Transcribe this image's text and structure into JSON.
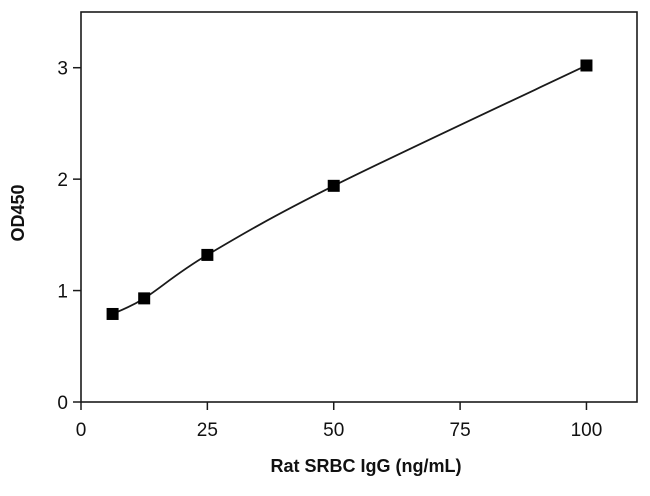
{
  "chart_data": {
    "type": "scatter",
    "title": "",
    "xlabel": "Rat SRBC IgG (ng/mL)",
    "ylabel": "OD450",
    "xlim": [
      0,
      110
    ],
    "ylim": [
      0,
      3.5
    ],
    "x_ticks": [
      0,
      25,
      50,
      75,
      100
    ],
    "y_ticks": [
      0,
      1,
      2,
      3
    ],
    "grid": false,
    "legend": "none",
    "fit_line": true,
    "series": [
      {
        "x": [
          6.25,
          12.5,
          25,
          50,
          100
        ],
        "y": [
          0.79,
          0.93,
          1.32,
          1.94,
          3.02
        ]
      }
    ],
    "colors": {
      "marker": "#000000",
      "line": "#1a1a1a",
      "axis": "#1a1a1a"
    }
  }
}
